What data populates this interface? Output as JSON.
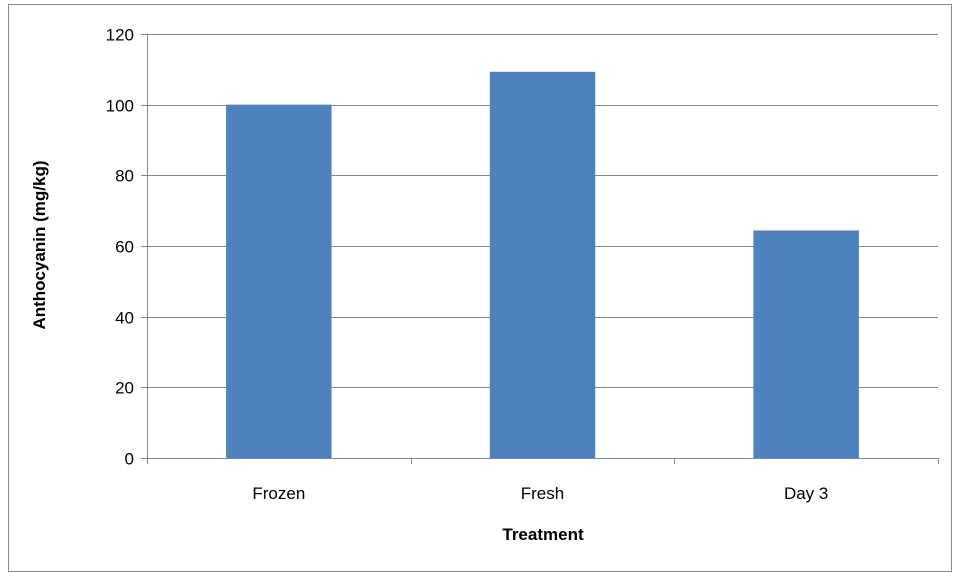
{
  "chart_data": {
    "type": "bar",
    "categories": [
      "Frozen",
      "Fresh",
      "Day 3"
    ],
    "values": [
      100,
      109.3,
      64.4
    ],
    "title": "",
    "xlabel": "Treatment",
    "ylabel": "Anthocyanin (mg/kg)",
    "ylim": [
      0,
      120
    ],
    "yticks": [
      0,
      20,
      40,
      60,
      80,
      100,
      120
    ],
    "ytick_labels": [
      "0",
      "20",
      "40",
      "60",
      "80",
      "100",
      "120"
    ],
    "grid": true,
    "legend": "none",
    "colors": {
      "bar": "#4f81bd",
      "grid": "#868686",
      "axis": "#868686",
      "border": "#898989"
    }
  }
}
